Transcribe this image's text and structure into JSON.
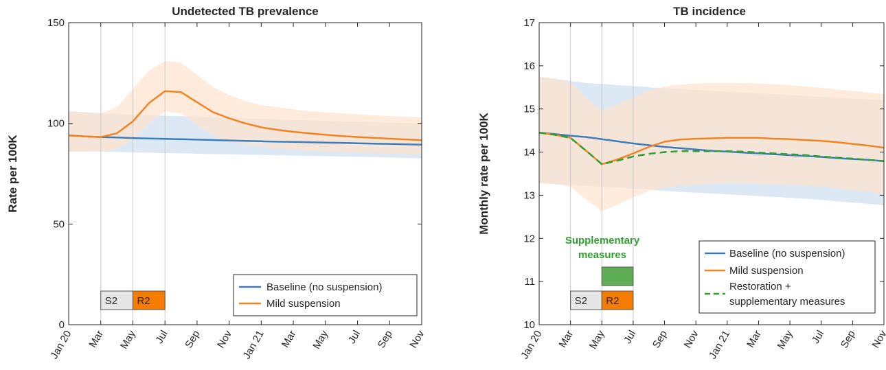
{
  "colors": {
    "baseline": "#3a7dbf",
    "mild": "#f58220",
    "restoration": "#2ea02e",
    "baseline_band": "#d6e5f3",
    "mild_band": "#fde3cc",
    "overlap_band": "#e3ddd3",
    "s2_box": "#e6e6e6",
    "r2_box": "#f57c00",
    "supp_box": "#5fae55"
  },
  "chart_data": [
    {
      "type": "line",
      "title": "Undetected TB prevalence",
      "xlabel": "",
      "ylabel": "Rate per 100K",
      "ylim": [
        0,
        150
      ],
      "yticks": [
        0,
        50,
        100,
        150
      ],
      "xticks": [
        "Jan 20",
        "Mar",
        "May",
        "Jul",
        "Sep",
        "Nov",
        "Jan 21",
        "Mar",
        "May",
        "Jul",
        "Sep",
        "Nov"
      ],
      "x_month_index_note_removed": true,
      "x": [
        "Jan 20",
        "Feb",
        "Mar",
        "Apr",
        "May",
        "Jun",
        "Jul",
        "Aug",
        "Sep",
        "Oct",
        "Nov",
        "Dec",
        "Jan 21",
        "Feb",
        "Mar",
        "Apr",
        "May",
        "Jun",
        "Jul",
        "Aug",
        "Sep",
        "Oct",
        "Nov"
      ],
      "series": [
        {
          "name": "Baseline (no suspension)",
          "values": [
            94,
            93.5,
            93.2,
            93,
            92.7,
            92.5,
            92.3,
            92.1,
            91.9,
            91.7,
            91.5,
            91.3,
            91.1,
            90.9,
            90.8,
            90.6,
            90.4,
            90.3,
            90.1,
            89.9,
            89.8,
            89.6,
            89.4
          ],
          "band_low": [
            86,
            86,
            86,
            85.8,
            85.6,
            85.4,
            85.2,
            85.1,
            84.9,
            84.7,
            84.6,
            84.4,
            84.3,
            84.1,
            84,
            83.8,
            83.7,
            83.5,
            83.4,
            83.2,
            83,
            82.8,
            82.6
          ],
          "band_high": [
            106,
            105.5,
            105,
            104.7,
            104.3,
            104,
            103.8,
            103.5,
            103.2,
            103,
            102.7,
            102.5,
            102.2,
            102,
            101.7,
            101.5,
            101.2,
            101,
            100.8,
            100.5,
            100.3,
            100.1,
            99.9
          ]
        },
        {
          "name": "Mild suspension",
          "values": [
            94,
            93.5,
            93.2,
            95,
            101,
            110,
            116,
            115.5,
            110.5,
            105.5,
            102.5,
            100,
            98,
            96.8,
            95.8,
            95,
            94.3,
            93.7,
            93.2,
            92.8,
            92.4,
            92,
            91.6
          ],
          "band_low": [
            86,
            86,
            86,
            87,
            92,
            100,
            106,
            105,
            99,
            94,
            91,
            89.5,
            88.5,
            87.5,
            87,
            86.5,
            86,
            85.8,
            85.5,
            85.3,
            85,
            84.8,
            84.6
          ],
          "band_high": [
            106,
            105.5,
            105,
            108,
            117,
            126,
            131,
            130,
            124,
            118,
            114,
            111,
            109,
            108,
            107,
            106,
            105.5,
            105,
            104.5,
            104,
            103.6,
            103.3,
            103
          ]
        }
      ],
      "phases": [
        {
          "label": "S2",
          "start": "Mar",
          "end": "May"
        },
        {
          "label": "R2",
          "start": "May",
          "end": "Jul"
        }
      ],
      "legend": [
        "Baseline (no suspension)",
        "Mild suspension"
      ],
      "legend_position": "bottom-right",
      "grid": false
    },
    {
      "type": "line",
      "title": "TB incidence",
      "xlabel": "",
      "ylabel": "Monthly rate per 100K",
      "ylim": [
        10,
        17
      ],
      "yticks": [
        10,
        11,
        12,
        13,
        14,
        15,
        16,
        17
      ],
      "xticks": [
        "Jan 20",
        "Mar",
        "May",
        "Jul",
        "Sep",
        "Nov",
        "Jan 21",
        "Mar",
        "May",
        "Jul",
        "Sep",
        "Nov"
      ],
      "x": [
        "Jan 20",
        "Feb",
        "Mar",
        "Apr",
        "May",
        "Jun",
        "Jul",
        "Aug",
        "Sep",
        "Oct",
        "Nov",
        "Dec",
        "Jan 21",
        "Feb",
        "Mar",
        "Apr",
        "May",
        "Jun",
        "Jul",
        "Aug",
        "Sep",
        "Oct",
        "Nov"
      ],
      "series": [
        {
          "name": "Baseline (no suspension)",
          "values": [
            14.45,
            14.42,
            14.38,
            14.35,
            14.3,
            14.25,
            14.2,
            14.16,
            14.12,
            14.09,
            14.06,
            14.03,
            14.01,
            13.99,
            13.97,
            13.95,
            13.93,
            13.91,
            13.89,
            13.86,
            13.84,
            13.82,
            13.79
          ],
          "band_low": [
            13.28,
            13.26,
            13.24,
            13.22,
            13.2,
            13.18,
            13.15,
            13.13,
            13.1,
            13.08,
            13.06,
            13.04,
            13.02,
            13,
            12.98,
            12.96,
            12.94,
            12.92,
            12.89,
            12.86,
            12.83,
            12.8,
            12.77
          ],
          "band_high": [
            15.75,
            15.7,
            15.65,
            15.6,
            15.58,
            15.55,
            15.53,
            15.5,
            15.48,
            15.46,
            15.44,
            15.42,
            15.4,
            15.38,
            15.36,
            15.34,
            15.32,
            15.3,
            15.28,
            15.26,
            15.24,
            15.22,
            15.2
          ]
        },
        {
          "name": "Mild suspension",
          "values": [
            14.45,
            14.4,
            14.33,
            14.03,
            13.72,
            13.83,
            13.97,
            14.12,
            14.24,
            14.29,
            14.31,
            14.32,
            14.33,
            14.33,
            14.33,
            14.31,
            14.3,
            14.28,
            14.26,
            14.23,
            14.19,
            14.15,
            14.1
          ],
          "band_low": [
            13.28,
            13.26,
            13.2,
            12.9,
            12.63,
            12.78,
            12.95,
            13.1,
            13.18,
            13.22,
            13.25,
            13.27,
            13.28,
            13.28,
            13.27,
            13.25,
            13.24,
            13.22,
            13.2,
            13.16,
            13.12,
            13.08,
            13.02
          ],
          "band_high": [
            15.75,
            15.7,
            15.62,
            15.25,
            14.97,
            15.1,
            15.27,
            15.43,
            15.52,
            15.56,
            15.59,
            15.6,
            15.6,
            15.6,
            15.59,
            15.57,
            15.55,
            15.52,
            15.49,
            15.45,
            15.42,
            15.38,
            15.34
          ]
        },
        {
          "name": "Restoration + supplementary measures",
          "values": [
            14.45,
            14.4,
            14.33,
            14.03,
            13.72,
            13.8,
            13.9,
            13.96,
            14.0,
            14.02,
            14.02,
            14.02,
            14.02,
            14.01,
            13.99,
            13.97,
            13.95,
            13.93,
            13.9,
            13.87,
            13.85,
            13.82,
            13.79
          ],
          "dashed": true
        }
      ],
      "phases": [
        {
          "label": "S2",
          "start": "Mar",
          "end": "May"
        },
        {
          "label": "R2",
          "start": "May",
          "end": "Jul"
        }
      ],
      "supplementary": {
        "label_line1": "Supplementary",
        "label_line2": "measures",
        "start": "May",
        "end": "Jul"
      },
      "legend": [
        "Baseline (no suspension)",
        "Mild suspension",
        "Restoration +",
        "supplementary measures"
      ],
      "legend_position": "bottom-right",
      "grid": false
    }
  ]
}
